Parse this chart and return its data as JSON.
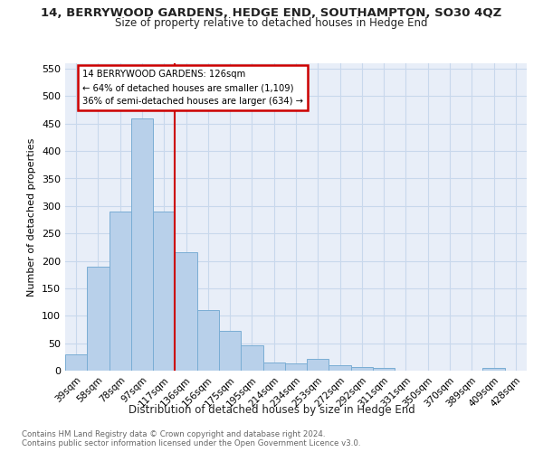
{
  "title": "14, BERRYWOOD GARDENS, HEDGE END, SOUTHAMPTON, SO30 4QZ",
  "subtitle": "Size of property relative to detached houses in Hedge End",
  "xlabel": "Distribution of detached houses by size in Hedge End",
  "ylabel": "Number of detached properties",
  "categories": [
    "39sqm",
    "58sqm",
    "78sqm",
    "97sqm",
    "117sqm",
    "136sqm",
    "156sqm",
    "175sqm",
    "195sqm",
    "214sqm",
    "234sqm",
    "253sqm",
    "272sqm",
    "292sqm",
    "311sqm",
    "331sqm",
    "350sqm",
    "370sqm",
    "389sqm",
    "409sqm",
    "428sqm"
  ],
  "values": [
    30,
    190,
    290,
    460,
    290,
    215,
    110,
    73,
    46,
    15,
    13,
    22,
    10,
    7,
    5,
    0,
    0,
    0,
    0,
    5,
    0
  ],
  "bar_color": "#b8d0ea",
  "bar_edge_color": "#7aadd4",
  "grid_color": "#c8d8ec",
  "background_color": "#e8eef8",
  "vline_x_index": 4.5,
  "vline_color": "#cc0000",
  "annotation_line1": "14 BERRYWOOD GARDENS: 126sqm",
  "annotation_line2": "← 64% of detached houses are smaller (1,109)",
  "annotation_line3": "36% of semi-detached houses are larger (634) →",
  "annotation_border_color": "#cc0000",
  "ylim_min": 0,
  "ylim_max": 560,
  "yticks": [
    0,
    50,
    100,
    150,
    200,
    250,
    300,
    350,
    400,
    450,
    500,
    550
  ],
  "footnote1": "Contains HM Land Registry data © Crown copyright and database right 2024.",
  "footnote2": "Contains public sector information licensed under the Open Government Licence v3.0."
}
